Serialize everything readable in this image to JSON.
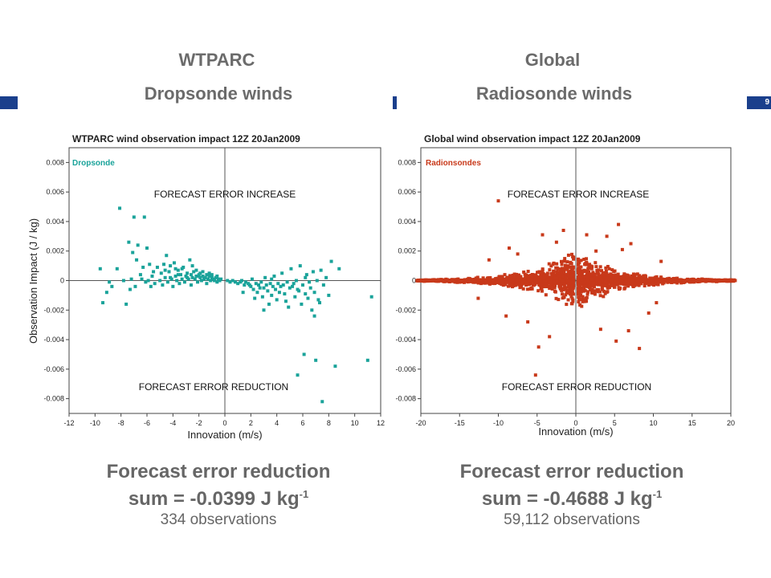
{
  "slide_number": "9",
  "left": {
    "title": "WTPARC",
    "subtitle": "Dropsonde winds",
    "footer_line1": "Forecast error reduction",
    "footer_sum_prefix": "sum = -0.0399 J kg",
    "footer_sum_exp": "-1",
    "footer_obs": "334 observations"
  },
  "right": {
    "title": "Global",
    "subtitle": "Radiosonde winds",
    "footer_line1": "Forecast error reduction",
    "footer_sum_prefix": "sum = -0.4688 J kg",
    "footer_sum_exp": "-1",
    "footer_obs": "59,112 observations"
  },
  "chart_data": [
    {
      "type": "scatter",
      "title": "WTPARC wind observation impact 12Z 20Jan2009",
      "legend": "Dropsonde",
      "legend_placement": "top-left",
      "xlabel": "Innovation (m/s)",
      "ylabel": "Observation Impact (J / kg)",
      "xlim": [
        -12,
        12
      ],
      "ylim": [
        -0.009,
        0.009
      ],
      "xticks": [
        "-12",
        "-10",
        "-8",
        "-6",
        "-4",
        "-2",
        "0",
        "2",
        "4",
        "6",
        "8",
        "10",
        "12"
      ],
      "yticks": [
        "-0.008",
        "-0.006",
        "-0.004",
        "-0.002",
        "0",
        "0.002",
        "0.004",
        "0.006",
        "0.008"
      ],
      "annotation_top": "FORECAST ERROR INCREASE",
      "annotation_bottom": "FORECAST ERROR REDUCTION",
      "color": "#1aa39a",
      "points": [
        [
          -9.6,
          0.0008
        ],
        [
          -9.4,
          -0.0015
        ],
        [
          -9.1,
          -0.0008
        ],
        [
          -8.9,
          -0.0001
        ],
        [
          -8.7,
          -0.0004
        ],
        [
          -8.3,
          0.0008
        ],
        [
          -8.1,
          0.0049
        ],
        [
          -7.8,
          0.0
        ],
        [
          -7.6,
          -0.0016
        ],
        [
          -7.4,
          0.0026
        ],
        [
          -7.3,
          -0.0006
        ],
        [
          -7.2,
          0.0001
        ],
        [
          -7.1,
          0.0019
        ],
        [
          -7.0,
          0.0043
        ],
        [
          -6.9,
          -0.0004
        ],
        [
          -6.8,
          0.0014
        ],
        [
          -6.7,
          0.0024
        ],
        [
          -6.5,
          0.0004
        ],
        [
          -6.4,
          0.0001
        ],
        [
          -6.3,
          0.0009
        ],
        [
          -6.2,
          0.0043
        ],
        [
          -6.1,
          -0.0001
        ],
        [
          -6.0,
          0.0022
        ],
        [
          -5.9,
          0.0
        ],
        [
          -5.8,
          0.0011
        ],
        [
          -5.7,
          -0.0004
        ],
        [
          -5.6,
          0.0003
        ],
        [
          -5.5,
          0.0006
        ],
        [
          -5.4,
          -0.0002
        ],
        [
          -5.2,
          0.0009
        ],
        [
          -5.0,
          0.0
        ],
        [
          -4.9,
          0.0005
        ],
        [
          -4.8,
          -0.0003
        ],
        [
          -4.7,
          0.0011
        ],
        [
          -4.6,
          0.0002
        ],
        [
          -4.5,
          0.0017
        ],
        [
          -4.4,
          -0.0001
        ],
        [
          -4.3,
          0.0006
        ],
        [
          -4.2,
          0.0002
        ],
        [
          -4.1,
          0.0001
        ],
        [
          -4.0,
          -0.0004
        ],
        [
          -3.9,
          0.0012
        ],
        [
          -3.8,
          0.0003
        ],
        [
          -3.7,
          0.0
        ],
        [
          -3.6,
          0.0007
        ],
        [
          -3.5,
          -0.0002
        ],
        [
          -3.4,
          0.0004
        ],
        [
          -3.3,
          0.0001
        ],
        [
          -3.2,
          0.0009
        ],
        [
          -3.1,
          -0.0001
        ],
        [
          -3.0,
          0.0003
        ],
        [
          -2.9,
          0.0005
        ],
        [
          -2.8,
          0.0001
        ],
        [
          -2.7,
          0.0014
        ],
        [
          -2.6,
          -0.0003
        ],
        [
          -2.5,
          0.0002
        ],
        [
          -2.4,
          0.0006
        ],
        [
          -2.3,
          0.0001
        ],
        [
          -2.2,
          0.0003
        ],
        [
          -2.1,
          -0.0001
        ],
        [
          -2.0,
          0.0004
        ],
        [
          -1.9,
          0.0002
        ],
        [
          -1.8,
          0.0
        ],
        [
          -1.7,
          0.0003
        ],
        [
          -1.6,
          0.0001
        ],
        [
          -1.5,
          0.0002
        ],
        [
          -1.4,
          -0.0002
        ],
        [
          -1.3,
          0.0001
        ],
        [
          -1.2,
          0.0003
        ],
        [
          -1.1,
          0.0
        ],
        [
          -1.0,
          0.0002
        ],
        [
          -0.9,
          0.0001
        ],
        [
          -0.8,
          0.0
        ],
        [
          -0.7,
          0.0002
        ],
        [
          -0.6,
          -0.0001
        ],
        [
          -0.5,
          0.0001
        ],
        [
          -0.4,
          0.0
        ],
        [
          -0.3,
          0.0001
        ],
        [
          -4.6,
          0.0007
        ],
        [
          -4.2,
          0.001
        ],
        [
          -3.6,
          0.0004
        ],
        [
          -3.3,
          0.0008
        ],
        [
          -2.9,
          0.0002
        ],
        [
          -2.5,
          0.001
        ],
        [
          -2.2,
          0.0007
        ],
        [
          -1.9,
          0.0005
        ],
        [
          -1.7,
          0.0006
        ],
        [
          -1.4,
          0.0004
        ],
        [
          -1.2,
          0.0005
        ],
        [
          -3.8,
          0.0008
        ],
        [
          -2.6,
          0.0004
        ],
        [
          -2.0,
          0.0003
        ],
        [
          -1.0,
          0.0004
        ],
        [
          -0.6,
          0.0003
        ],
        [
          0.2,
          0.0
        ],
        [
          0.4,
          -0.0001
        ],
        [
          0.6,
          0.0
        ],
        [
          0.8,
          -0.0001
        ],
        [
          1.0,
          -0.0002
        ],
        [
          1.2,
          -0.0001
        ],
        [
          1.3,
          0.0
        ],
        [
          1.5,
          -0.0003
        ],
        [
          1.6,
          -0.0001
        ],
        [
          1.8,
          -0.0002
        ],
        [
          2.0,
          -0.0004
        ],
        [
          2.1,
          0.0001
        ],
        [
          2.2,
          -0.0006
        ],
        [
          2.4,
          -0.0002
        ],
        [
          2.5,
          -0.0008
        ],
        [
          2.6,
          -0.0003
        ],
        [
          2.8,
          -0.0001
        ],
        [
          2.9,
          -0.0011
        ],
        [
          3.0,
          -0.0005
        ],
        [
          3.1,
          0.0002
        ],
        [
          3.2,
          -0.0003
        ],
        [
          3.3,
          -0.0007
        ],
        [
          3.4,
          -0.0016
        ],
        [
          3.5,
          -0.0002
        ],
        [
          3.6,
          -0.001
        ],
        [
          3.7,
          -0.0004
        ],
        [
          3.8,
          0.0003
        ],
        [
          3.9,
          -0.0006
        ],
        [
          4.0,
          -0.0013
        ],
        [
          4.1,
          -0.0002
        ],
        [
          4.2,
          -0.0008
        ],
        [
          4.4,
          0.0005
        ],
        [
          4.5,
          -0.0003
        ],
        [
          4.6,
          -0.0009
        ],
        [
          4.8,
          -0.0001
        ],
        [
          4.9,
          -0.0018
        ],
        [
          5.0,
          -0.0005
        ],
        [
          5.1,
          0.0008
        ],
        [
          5.2,
          -0.0004
        ],
        [
          5.3,
          -0.0002
        ],
        [
          5.4,
          -0.0011
        ],
        [
          5.5,
          0.0
        ],
        [
          5.6,
          -0.0064
        ],
        [
          5.7,
          -0.0007
        ],
        [
          5.8,
          0.001
        ],
        [
          5.9,
          -0.0016
        ],
        [
          6.0,
          -0.0003
        ],
        [
          6.1,
          -0.005
        ],
        [
          6.2,
          -0.0009
        ],
        [
          6.3,
          0.0004
        ],
        [
          6.4,
          -0.0012
        ],
        [
          6.5,
          -0.0001
        ],
        [
          6.6,
          -0.0005
        ],
        [
          6.7,
          -0.002
        ],
        [
          6.8,
          0.0006
        ],
        [
          6.9,
          -0.0008
        ],
        [
          7.0,
          -0.0054
        ],
        [
          7.1,
          0.0
        ],
        [
          7.3,
          -0.0015
        ],
        [
          7.4,
          0.0007
        ],
        [
          7.5,
          -0.0082
        ],
        [
          7.6,
          -0.0003
        ],
        [
          7.8,
          0.0002
        ],
        [
          8.0,
          -0.001
        ],
        [
          8.2,
          0.0013
        ],
        [
          8.5,
          -0.0058
        ],
        [
          8.8,
          0.0008
        ],
        [
          11.0,
          -0.0054
        ],
        [
          11.3,
          -0.0011
        ],
        [
          1.4,
          -0.0008
        ],
        [
          2.3,
          -0.0012
        ],
        [
          3.0,
          -0.002
        ],
        [
          4.3,
          -0.0004
        ],
        [
          4.7,
          -0.0014
        ],
        [
          5.6,
          -0.0006
        ],
        [
          6.2,
          0.0002
        ],
        [
          6.9,
          -0.0024
        ],
        [
          7.2,
          -0.0013
        ],
        [
          3.6,
          0.0001
        ],
        [
          2.7,
          -0.0005
        ],
        [
          1.9,
          -0.0003
        ]
      ]
    },
    {
      "type": "scatter",
      "title": "Global wind observation impact 12Z 20Jan2009",
      "legend": "Radionsondes",
      "legend_placement": "top-left",
      "xlabel": "Innovation (m/s)",
      "ylabel": "",
      "xlim": [
        -20,
        20
      ],
      "ylim": [
        -0.009,
        0.009
      ],
      "xticks": [
        "-20",
        "-15",
        "-10",
        "-5",
        "0",
        "5",
        "10",
        "15",
        "20"
      ],
      "yticks": [
        "-0.008",
        "-0.006",
        "-0.004",
        "-0.002",
        "0",
        "0.002",
        "0.004",
        "0.006",
        "0.008"
      ],
      "annotation_top": "FORECAST ERROR INCREASE",
      "annotation_bottom": "FORECAST ERROR REDUCTION",
      "color": "#c8391a",
      "points": [
        [
          -10.0,
          0.0054
        ],
        [
          -5.2,
          -0.0064
        ],
        [
          5.5,
          0.0038
        ],
        [
          8.2,
          -0.0046
        ],
        [
          -4.3,
          0.0031
        ],
        [
          4.0,
          0.003
        ],
        [
          -9.0,
          -0.0024
        ],
        [
          -2.5,
          0.0026
        ],
        [
          2.6,
          0.002
        ],
        [
          6.8,
          -0.0034
        ],
        [
          -6.2,
          -0.0028
        ],
        [
          9.4,
          -0.0022
        ],
        [
          -8.6,
          0.0022
        ],
        [
          7.1,
          0.0025
        ],
        [
          -3.4,
          -0.0038
        ],
        [
          3.2,
          -0.0033
        ],
        [
          -11.2,
          0.0014
        ],
        [
          11.0,
          0.0013
        ],
        [
          -1.6,
          0.0034
        ],
        [
          1.4,
          0.0031
        ],
        [
          -7.5,
          0.0018
        ],
        [
          5.2,
          -0.0041
        ],
        [
          -4.8,
          -0.0045
        ],
        [
          6.0,
          0.0021
        ],
        [
          10.4,
          -0.0015
        ],
        [
          -12.6,
          -0.0012
        ]
      ]
    }
  ]
}
